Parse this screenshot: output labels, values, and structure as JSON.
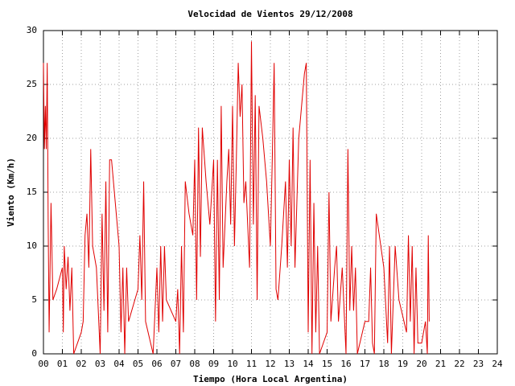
{
  "chart_data": {
    "type": "line",
    "title": "Velocidad de Vientos 29/12/2008",
    "xlabel": "Tiempo (Hora Local Argentina)",
    "ylabel": "Viento (Km/h)",
    "color": "#e00000",
    "grid": true,
    "xlim": [
      0,
      24
    ],
    "ylim": [
      0,
      30
    ],
    "yticks": [
      0,
      5,
      10,
      15,
      20,
      25,
      30
    ],
    "xticks": [
      {
        "value": 0,
        "label": "00"
      },
      {
        "value": 1,
        "label": "01"
      },
      {
        "value": 2,
        "label": "02"
      },
      {
        "value": 3,
        "label": "03"
      },
      {
        "value": 4,
        "label": "04"
      },
      {
        "value": 5,
        "label": "05"
      },
      {
        "value": 6,
        "label": "06"
      },
      {
        "value": 7,
        "label": "07"
      },
      {
        "value": 8,
        "label": "08"
      },
      {
        "value": 9,
        "label": "09"
      },
      {
        "value": 10,
        "label": "10"
      },
      {
        "value": 11,
        "label": "11"
      },
      {
        "value": 12,
        "label": "12"
      },
      {
        "value": 13,
        "label": "13"
      },
      {
        "value": 14,
        "label": "14"
      },
      {
        "value": 15,
        "label": "15"
      },
      {
        "value": 16,
        "label": "16"
      },
      {
        "value": 17,
        "label": "17"
      },
      {
        "value": 18,
        "label": "18"
      },
      {
        "value": 19,
        "label": "19"
      },
      {
        "value": 20,
        "label": "20"
      },
      {
        "value": 21,
        "label": "21"
      },
      {
        "value": 22,
        "label": "22"
      },
      {
        "value": 23,
        "label": "23"
      },
      {
        "value": 24,
        "label": "24"
      }
    ],
    "x": [
      0.0,
      0.05,
      0.1,
      0.15,
      0.2,
      0.25,
      0.3,
      0.4,
      0.5,
      0.7,
      1.0,
      1.05,
      1.1,
      1.2,
      1.3,
      1.4,
      1.5,
      1.6,
      2.0,
      2.1,
      2.2,
      2.3,
      2.4,
      2.5,
      2.6,
      2.8,
      3.0,
      3.1,
      3.2,
      3.3,
      3.4,
      3.5,
      3.6,
      4.0,
      4.1,
      4.2,
      4.3,
      4.4,
      4.5,
      5.0,
      5.1,
      5.2,
      5.3,
      5.4,
      5.8,
      6.0,
      6.1,
      6.2,
      6.3,
      6.4,
      6.5,
      7.0,
      7.1,
      7.2,
      7.3,
      7.4,
      7.5,
      7.7,
      7.9,
      8.0,
      8.1,
      8.2,
      8.3,
      8.4,
      8.6,
      8.8,
      9.0,
      9.1,
      9.2,
      9.3,
      9.4,
      9.5,
      9.7,
      9.8,
      9.9,
      10.0,
      10.1,
      10.2,
      10.3,
      10.4,
      10.5,
      10.6,
      10.7,
      10.9,
      11.0,
      11.1,
      11.2,
      11.3,
      11.4,
      11.6,
      11.8,
      12.0,
      12.1,
      12.2,
      12.3,
      12.4,
      12.6,
      12.8,
      12.9,
      13.0,
      13.1,
      13.2,
      13.3,
      13.5,
      13.8,
      13.9,
      14.0,
      14.1,
      14.2,
      14.3,
      14.4,
      14.5,
      14.6,
      15.0,
      15.1,
      15.2,
      15.4,
      15.5,
      15.6,
      15.8,
      16.0,
      16.1,
      16.2,
      16.3,
      16.4,
      16.5,
      16.6,
      17.0,
      17.2,
      17.3,
      17.4,
      17.5,
      17.6,
      18.0,
      18.2,
      18.3,
      18.4,
      18.6,
      18.8,
      19.2,
      19.3,
      19.4,
      19.5,
      19.6,
      19.7,
      19.8,
      20.0,
      20.2,
      20.3,
      20.35,
      20.4
    ],
    "values": [
      27,
      19,
      23,
      19,
      27,
      12,
      2,
      14,
      5,
      6,
      8,
      2,
      10,
      6,
      9,
      4,
      8,
      0,
      2,
      3,
      11,
      13,
      8,
      19,
      10,
      8,
      0,
      13,
      4,
      16,
      2,
      18,
      18,
      10,
      2,
      8,
      0,
      8,
      3,
      6,
      11,
      5,
      16,
      3,
      0,
      8,
      2,
      10,
      3,
      10,
      5,
      3,
      6,
      0,
      10,
      2,
      16,
      13,
      11,
      18,
      5,
      21,
      9,
      21,
      16,
      12,
      18,
      3,
      18,
      5,
      23,
      8,
      16,
      19,
      12,
      23,
      10,
      18,
      27,
      22,
      25,
      14,
      16,
      8,
      29,
      12,
      24,
      5,
      23,
      20,
      16,
      10,
      18,
      27,
      6,
      5,
      10,
      16,
      8,
      18,
      10,
      21,
      8,
      20,
      26,
      27,
      2,
      18,
      0,
      14,
      2,
      10,
      0,
      2,
      15,
      3,
      8,
      10,
      3,
      8,
      0,
      19,
      4,
      10,
      4,
      8,
      0,
      3,
      3,
      8,
      1,
      0,
      13,
      8,
      1,
      10,
      0,
      10,
      5,
      2,
      11,
      3,
      10,
      0,
      8,
      1,
      1,
      3,
      0,
      11,
      3
    ]
  }
}
